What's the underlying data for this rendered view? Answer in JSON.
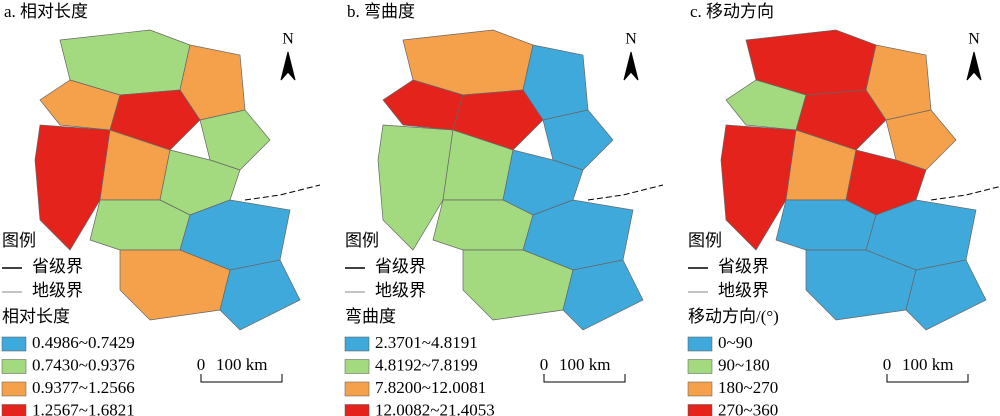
{
  "panels": [
    {
      "title": "a. 相对长度",
      "north": "N",
      "legend": {
        "title": "图例",
        "lines": [
          "省级界",
          "地级界"
        ],
        "heading": "相对长度",
        "classes": [
          {
            "label": "0.4986~0.7429",
            "color": "#3fa9dc"
          },
          {
            "label": "0.7430~0.9376",
            "color": "#a3d97f"
          },
          {
            "label": "0.9377~1.2566",
            "color": "#f5a14c"
          },
          {
            "label": "1.2567~1.6821",
            "color": "#e3231c"
          }
        ]
      },
      "scale": {
        "start": "0",
        "end": "100 km"
      }
    },
    {
      "title": "b. 弯曲度",
      "north": "N",
      "legend": {
        "title": "图例",
        "lines": [
          "省级界",
          "地级界"
        ],
        "heading": "弯曲度",
        "classes": [
          {
            "label": "2.3701~4.8191",
            "color": "#3fa9dc"
          },
          {
            "label": "4.8192~7.8199",
            "color": "#a3d97f"
          },
          {
            "label": "7.8200~12.0081",
            "color": "#f5a14c"
          },
          {
            "label": "12.0082~21.4053",
            "color": "#e3231c"
          }
        ]
      },
      "scale": {
        "start": "0",
        "end": "100 km"
      }
    },
    {
      "title": "c. 移动方向",
      "north": "N",
      "legend": {
        "title": "图例",
        "lines": [
          "省级界",
          "地级界"
        ],
        "heading": "移动方向/(°)",
        "classes": [
          {
            "label": "0~90",
            "color": "#3fa9dc"
          },
          {
            "label": "90~180",
            "color": "#a3d97f"
          },
          {
            "label": "180~270",
            "color": "#f5a14c"
          },
          {
            "label": "270~360",
            "color": "#e3231c"
          }
        ]
      },
      "scale": {
        "start": "0",
        "end": "100 km"
      }
    }
  ]
}
